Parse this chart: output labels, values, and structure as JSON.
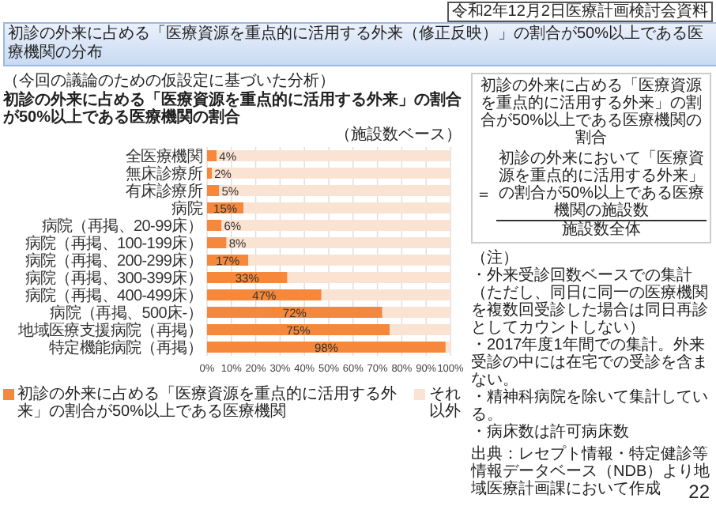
{
  "chart_data": {
    "type": "bar",
    "orientation": "horizontal",
    "stacked": true,
    "title": "初診の外来に占める「医療資源を重点的に活用する外来（修正反映）」の割合が50%以上である医療機関の分布",
    "subtitle": "初診の外来に占める「医療資源を重点的に活用する外来」の割合が50%以上である医療機関の割合",
    "categories": [
      "全医療機関",
      "無床診療所",
      "有床診療所",
      "病院",
      "病院（再掲、20-99床）",
      "病院（再掲、100-199床）",
      "病院（再掲、200-299床）",
      "病院（再掲、300-399床）",
      "病院（再掲、400-499床）",
      "病院（再掲、500床-）",
      "地域医療支援病院（再掲）",
      "特定機能病院（再掲）"
    ],
    "series": [
      {
        "name": "初診の外来に占める「医療資源を重点的に活用する外来」の割合が50%以上である医療機関",
        "color": "#f5883b",
        "values": [
          4,
          2,
          5,
          15,
          6,
          8,
          17,
          33,
          47,
          72,
          75,
          98
        ],
        "value_labels": [
          "4%",
          "2%",
          "5%",
          "15%",
          "6%",
          "8%",
          "17%",
          "33%",
          "47%",
          "72%",
          "75%",
          "98%"
        ]
      },
      {
        "name": "それ以外",
        "color": "#fbe3d3",
        "values": [
          96,
          98,
          95,
          85,
          94,
          92,
          83,
          67,
          53,
          28,
          25,
          2
        ]
      }
    ],
    "xlim": [
      0,
      100
    ],
    "xticks": [
      {
        "value": 0,
        "label": "0%"
      },
      {
        "value": 10,
        "label": "10%"
      },
      {
        "value": 20,
        "label": "20%"
      },
      {
        "value": 30,
        "label": "30%"
      },
      {
        "value": 40,
        "label": "40%"
      },
      {
        "value": 50,
        "label": "50%"
      },
      {
        "value": 60,
        "label": "60%"
      },
      {
        "value": 70,
        "label": "70%"
      },
      {
        "value": 80,
        "label": "80%"
      },
      {
        "value": 90,
        "label": "90%"
      },
      {
        "value": 100,
        "label": "100%"
      }
    ],
    "grid": "x",
    "legend": "bottom",
    "annotations": [
      "令和2年12月2日医療計画検討会資料",
      "（今回の議論のための仮設定に基づいた分析）",
      "（施設数ベース）",
      "初診の外来に占める「医療資源を重点的に活用する外来」の割合が50%以上である医療機関の割合",
      "＝",
      "初診の外来において「医療資源を重点的に活用する外来」の割合が50%以上である医療機関の施設数",
      "施設数全体",
      "（注）",
      "・外来受診回数ベースでの集計（ただし、同日に同一の医療機関を複数回受診した場合は同日再診としてカウントしない）",
      "・2017年度1年間での集計。外来受診の中には在宅での受診を含まない。",
      "・精神科病院を除いて集計している。",
      "・病床数は許可病床数",
      "出典：レセプト情報・特定健診等情報データベース（NDB）より地域医療計画課において作成",
      "22"
    ]
  }
}
